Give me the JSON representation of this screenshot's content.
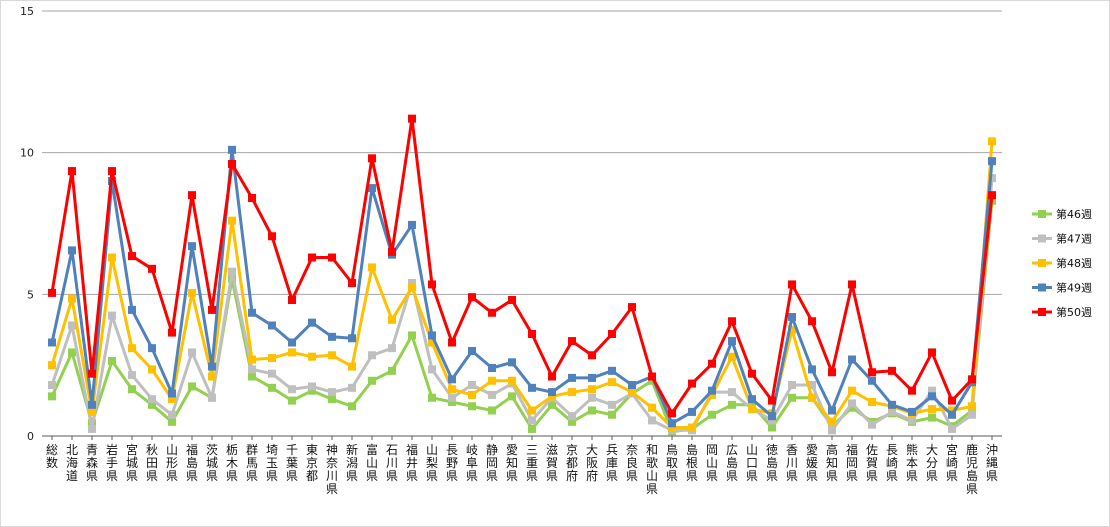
{
  "chart_data": {
    "type": "line",
    "title": "",
    "xlabel": "",
    "ylabel": "",
    "ylim": [
      0,
      15
    ],
    "yticks": [
      0,
      5,
      10,
      15
    ],
    "grid": true,
    "legend_position": "right",
    "categories": [
      "総数",
      "北海道",
      "青森県",
      "岩手県",
      "宮城県",
      "秋田県",
      "山形県",
      "福島県",
      "茨城県",
      "栃木県",
      "群馬県",
      "埼玉県",
      "千葉県",
      "東京都",
      "神奈川県",
      "新潟県",
      "富山県",
      "石川県",
      "福井県",
      "山梨県",
      "長野県",
      "岐阜県",
      "静岡県",
      "愛知県",
      "三重県",
      "滋賀県",
      "京都府",
      "大阪府",
      "兵庫県",
      "奈良県",
      "和歌山県",
      "鳥取県",
      "島根県",
      "岡山県",
      "広島県",
      "山口県",
      "徳島県",
      "香川県",
      "愛媛県",
      "高知県",
      "福岡県",
      "佐賀県",
      "長崎県",
      "熊本県",
      "大分県",
      "宮崎県",
      "鹿児島県",
      "沖縄県"
    ],
    "series": [
      {
        "name": "第46週",
        "color": "#92d050",
        "values": [
          1.4,
          2.95,
          0.45,
          2.65,
          1.65,
          1.1,
          0.5,
          1.75,
          1.35,
          5.55,
          2.1,
          1.7,
          1.25,
          1.6,
          1.3,
          1.05,
          1.95,
          2.3,
          3.55,
          1.35,
          1.2,
          1.05,
          0.9,
          1.4,
          0.25,
          1.1,
          0.5,
          0.9,
          0.75,
          1.5,
          1.95,
          0.15,
          0.25,
          0.75,
          1.1,
          1.1,
          0.3,
          1.35,
          1.35,
          0.35,
          1.0,
          0.5,
          0.8,
          0.5,
          0.65,
          0.35,
          0.9,
          8.3
        ]
      },
      {
        "name": "第47週",
        "color": "#bfbfbf",
        "values": [
          1.8,
          3.9,
          0.25,
          4.25,
          2.15,
          1.3,
          0.75,
          2.95,
          1.35,
          5.8,
          2.35,
          2.2,
          1.65,
          1.75,
          1.55,
          1.7,
          2.85,
          3.1,
          5.4,
          2.35,
          1.35,
          1.8,
          1.45,
          1.85,
          0.55,
          1.35,
          0.7,
          1.35,
          1.1,
          1.5,
          0.55,
          0.2,
          0.2,
          1.55,
          1.55,
          0.95,
          0.55,
          1.8,
          1.8,
          0.2,
          1.15,
          0.4,
          0.85,
          0.55,
          1.6,
          0.25,
          0.75,
          9.1
        ]
      },
      {
        "name": "第48週",
        "color": "#ffc000",
        "values": [
          2.5,
          4.85,
          0.85,
          6.3,
          3.1,
          2.35,
          1.3,
          5.05,
          2.1,
          7.6,
          2.7,
          2.75,
          2.95,
          2.8,
          2.85,
          2.45,
          5.95,
          4.1,
          5.25,
          3.3,
          1.65,
          1.45,
          1.95,
          1.95,
          0.9,
          1.4,
          1.55,
          1.65,
          1.9,
          1.55,
          1.0,
          0.3,
          0.3,
          1.45,
          2.8,
          0.95,
          0.8,
          3.75,
          1.35,
          0.5,
          1.6,
          1.2,
          1.05,
          0.8,
          0.95,
          0.9,
          1.05,
          10.4
        ]
      },
      {
        "name": "第49週",
        "color": "#4f81bd",
        "values": [
          3.3,
          6.55,
          1.1,
          9.0,
          4.45,
          3.1,
          1.5,
          6.7,
          2.45,
          10.1,
          4.35,
          3.9,
          3.3,
          4.0,
          3.5,
          3.45,
          8.75,
          6.4,
          7.45,
          3.55,
          2.0,
          3.0,
          2.4,
          2.6,
          1.7,
          1.55,
          2.05,
          2.05,
          2.3,
          1.8,
          2.1,
          0.45,
          0.85,
          1.6,
          3.35,
          1.3,
          0.7,
          4.2,
          2.35,
          0.9,
          2.7,
          1.95,
          1.1,
          0.85,
          1.4,
          0.75,
          1.9,
          9.7
        ]
      },
      {
        "name": "第50週",
        "color": "#ff0000",
        "values": [
          5.05,
          9.35,
          2.2,
          9.35,
          6.35,
          5.9,
          3.65,
          8.5,
          4.45,
          9.6,
          8.4,
          7.05,
          4.8,
          6.3,
          6.3,
          5.4,
          9.8,
          6.5,
          11.2,
          5.35,
          3.3,
          4.9,
          4.35,
          4.8,
          3.6,
          2.1,
          3.35,
          2.85,
          3.6,
          4.55,
          2.1,
          0.8,
          1.85,
          2.55,
          4.05,
          2.2,
          1.25,
          5.35,
          4.05,
          2.25,
          5.35,
          2.25,
          2.3,
          1.6,
          2.95,
          1.25,
          2.0,
          8.5
        ]
      }
    ]
  }
}
